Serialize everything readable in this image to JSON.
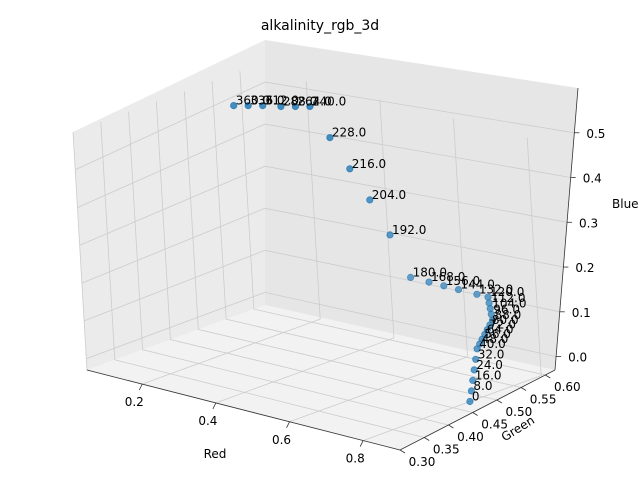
{
  "chart_data": {
    "type": "scatter",
    "projection": "3d",
    "title": "alkalinity_rgb_3d",
    "xlabel": "Red",
    "ylabel": "Green",
    "zlabel": "Blue",
    "xlim": [
      0.05,
      0.9
    ],
    "ylim": [
      0.3,
      0.62
    ],
    "zlim": [
      -0.03,
      0.6
    ],
    "xticks": [
      "0.2",
      "0.4",
      "0.6",
      "0.8"
    ],
    "yticks": [
      "0.30",
      "0.35",
      "0.40",
      "0.45",
      "0.50",
      "0.55",
      "0.60"
    ],
    "zticks": [
      "0.0",
      "0.1",
      "0.2",
      "0.3",
      "0.4",
      "0.5"
    ],
    "grid": true,
    "marker_color": "#1f77b4",
    "points": [
      {
        "label": "0",
        "red": 0.85,
        "green": 0.46,
        "blue": 0.0
      },
      {
        "label": "8.0",
        "red": 0.84,
        "green": 0.47,
        "blue": 0.02
      },
      {
        "label": "16.0",
        "red": 0.83,
        "green": 0.48,
        "blue": 0.04
      },
      {
        "label": "24.0",
        "red": 0.82,
        "green": 0.49,
        "blue": 0.06
      },
      {
        "label": "32.0",
        "red": 0.81,
        "green": 0.5,
        "blue": 0.08
      },
      {
        "label": "40.0",
        "red": 0.8,
        "green": 0.51,
        "blue": 0.1
      },
      {
        "label": "48.0",
        "red": 0.8,
        "green": 0.515,
        "blue": 0.11
      },
      {
        "label": "56.0",
        "red": 0.8,
        "green": 0.52,
        "blue": 0.12
      },
      {
        "label": "64.0",
        "red": 0.8,
        "green": 0.525,
        "blue": 0.13
      },
      {
        "label": "72.0",
        "red": 0.8,
        "green": 0.53,
        "blue": 0.14
      },
      {
        "label": "80.0",
        "red": 0.8,
        "green": 0.535,
        "blue": 0.15
      },
      {
        "label": "88.0",
        "red": 0.8,
        "green": 0.54,
        "blue": 0.16
      },
      {
        "label": "96.0",
        "red": 0.79,
        "green": 0.545,
        "blue": 0.17
      },
      {
        "label": "104.0",
        "red": 0.78,
        "green": 0.55,
        "blue": 0.18
      },
      {
        "label": "112.0",
        "red": 0.77,
        "green": 0.555,
        "blue": 0.19
      },
      {
        "label": "120.0",
        "red": 0.76,
        "green": 0.56,
        "blue": 0.2
      },
      {
        "label": "132.0",
        "red": 0.73,
        "green": 0.56,
        "blue": 0.2
      },
      {
        "label": "144.0",
        "red": 0.68,
        "green": 0.56,
        "blue": 0.2
      },
      {
        "label": "156.0",
        "red": 0.64,
        "green": 0.56,
        "blue": 0.2
      },
      {
        "label": "168.0",
        "red": 0.6,
        "green": 0.56,
        "blue": 0.2
      },
      {
        "label": "180.0",
        "red": 0.55,
        "green": 0.56,
        "blue": 0.2
      },
      {
        "label": "192.0",
        "red": 0.5,
        "green": 0.56,
        "blue": 0.3
      },
      {
        "label": "204.0",
        "red": 0.45,
        "green": 0.56,
        "blue": 0.38
      },
      {
        "label": "216.0",
        "red": 0.4,
        "green": 0.56,
        "blue": 0.45
      },
      {
        "label": "228.0",
        "red": 0.35,
        "green": 0.56,
        "blue": 0.52
      },
      {
        "label": "240.0",
        "red": 0.3,
        "green": 0.56,
        "blue": 0.59
      },
      {
        "label": "264.0",
        "red": 0.26,
        "green": 0.56,
        "blue": 0.58
      },
      {
        "label": "288.0",
        "red": 0.22,
        "green": 0.56,
        "blue": 0.57
      },
      {
        "label": "312.0",
        "red": 0.17,
        "green": 0.56,
        "blue": 0.56
      },
      {
        "label": "336.0",
        "red": 0.13,
        "green": 0.56,
        "blue": 0.55
      },
      {
        "label": "360.0",
        "red": 0.09,
        "green": 0.56,
        "blue": 0.54
      }
    ]
  }
}
